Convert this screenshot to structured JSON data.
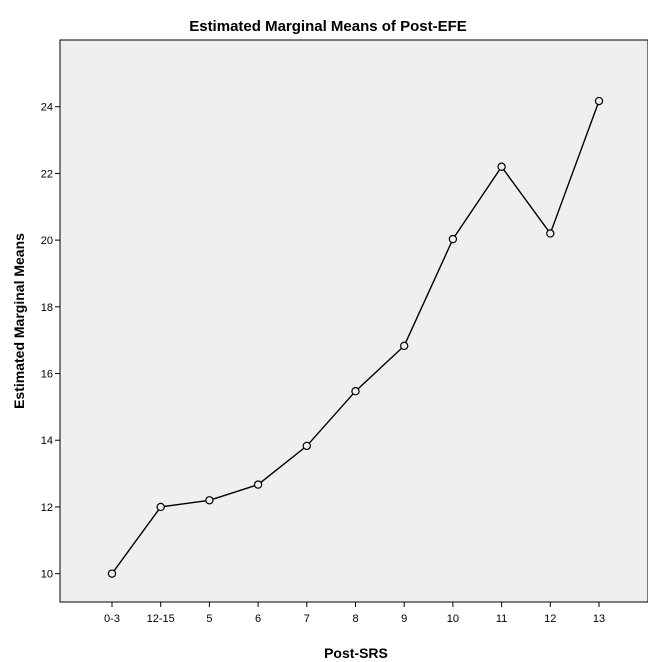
{
  "chart_data": {
    "type": "line",
    "title": "Estimated Marginal Means of Post-EFE",
    "xlabel": "Post-SRS",
    "ylabel": "Estimated Marginal Means",
    "categories": [
      "0-3",
      "12-15",
      "5",
      "6",
      "7",
      "8",
      "9",
      "10",
      "11",
      "12",
      "13"
    ],
    "series": [
      {
        "values": [
          10.0,
          12.0,
          12.2,
          12.67,
          13.83,
          15.47,
          16.83,
          20.03,
          22.2,
          20.2,
          24.17
        ]
      }
    ],
    "ylim": [
      9.15,
      26.0
    ],
    "yticks": [
      10,
      12,
      14,
      16,
      18,
      20,
      22,
      24
    ],
    "grid": false,
    "legend": "none",
    "colors": {
      "plot_background": "#efefef",
      "line": "#000000"
    }
  }
}
